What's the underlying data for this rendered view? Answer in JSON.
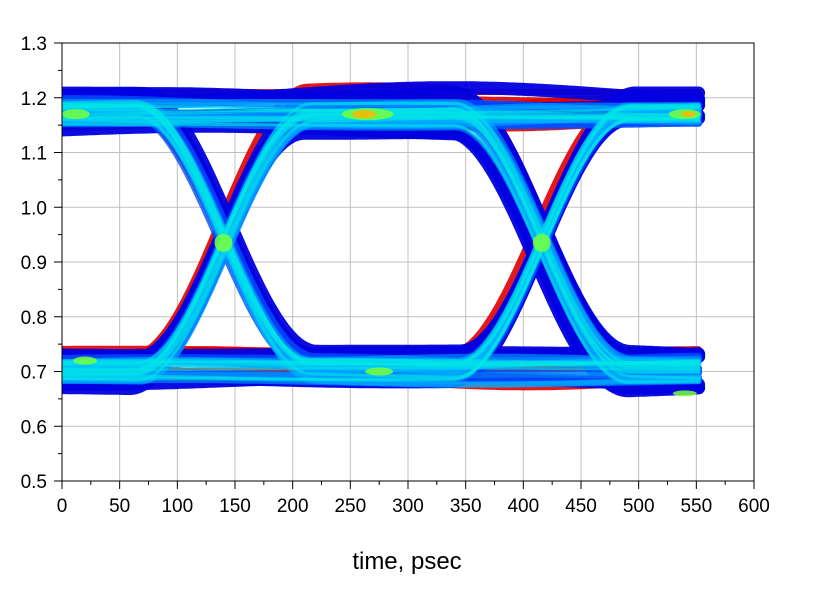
{
  "chart_data": {
    "type": "eye-diagram",
    "title": "",
    "xlabel": "time, psec",
    "ylabel": "",
    "xlim": [
      0,
      600
    ],
    "ylim": [
      0.5,
      1.3
    ],
    "x_ticks": [
      0,
      50,
      100,
      150,
      200,
      250,
      300,
      350,
      400,
      450,
      500,
      550,
      600
    ],
    "x_tick_labels": [
      "0",
      "50",
      "100",
      "150",
      "200",
      "250",
      "300",
      "350",
      "400",
      "450",
      "500",
      "550",
      "600"
    ],
    "y_ticks": [
      0.5,
      0.6,
      0.7,
      0.8,
      0.9,
      1.0,
      1.1,
      1.2,
      1.3
    ],
    "y_tick_labels": [
      "0.5",
      "0.6",
      "0.7",
      "0.8",
      "0.9",
      "1.0",
      "1.1",
      "1.2",
      "1.3"
    ],
    "grid": true,
    "data_span_ps": [
      0,
      553
    ],
    "unit_interval_ps": 276.5,
    "crossing_points": [
      {
        "x": 140,
        "y": 0.95
      },
      {
        "x": 416,
        "y": 0.95
      }
    ],
    "levels": {
      "high": 1.17,
      "low": 0.7
    },
    "high_band": [
      1.13,
      1.25
    ],
    "low_band": [
      0.6,
      0.71
    ],
    "eye_openings": [
      {
        "center_x": 265,
        "top": 1.12,
        "bottom": 0.79
      },
      {
        "center_x": 540,
        "top": 1.12,
        "bottom": 0.79
      }
    ],
    "density_colors": [
      "#0000e0",
      "#0050ff",
      "#00b4ff",
      "#00e6e6",
      "#78ff3c",
      "#ffb400",
      "#e60000"
    ],
    "outlier_color": "#e00000"
  }
}
